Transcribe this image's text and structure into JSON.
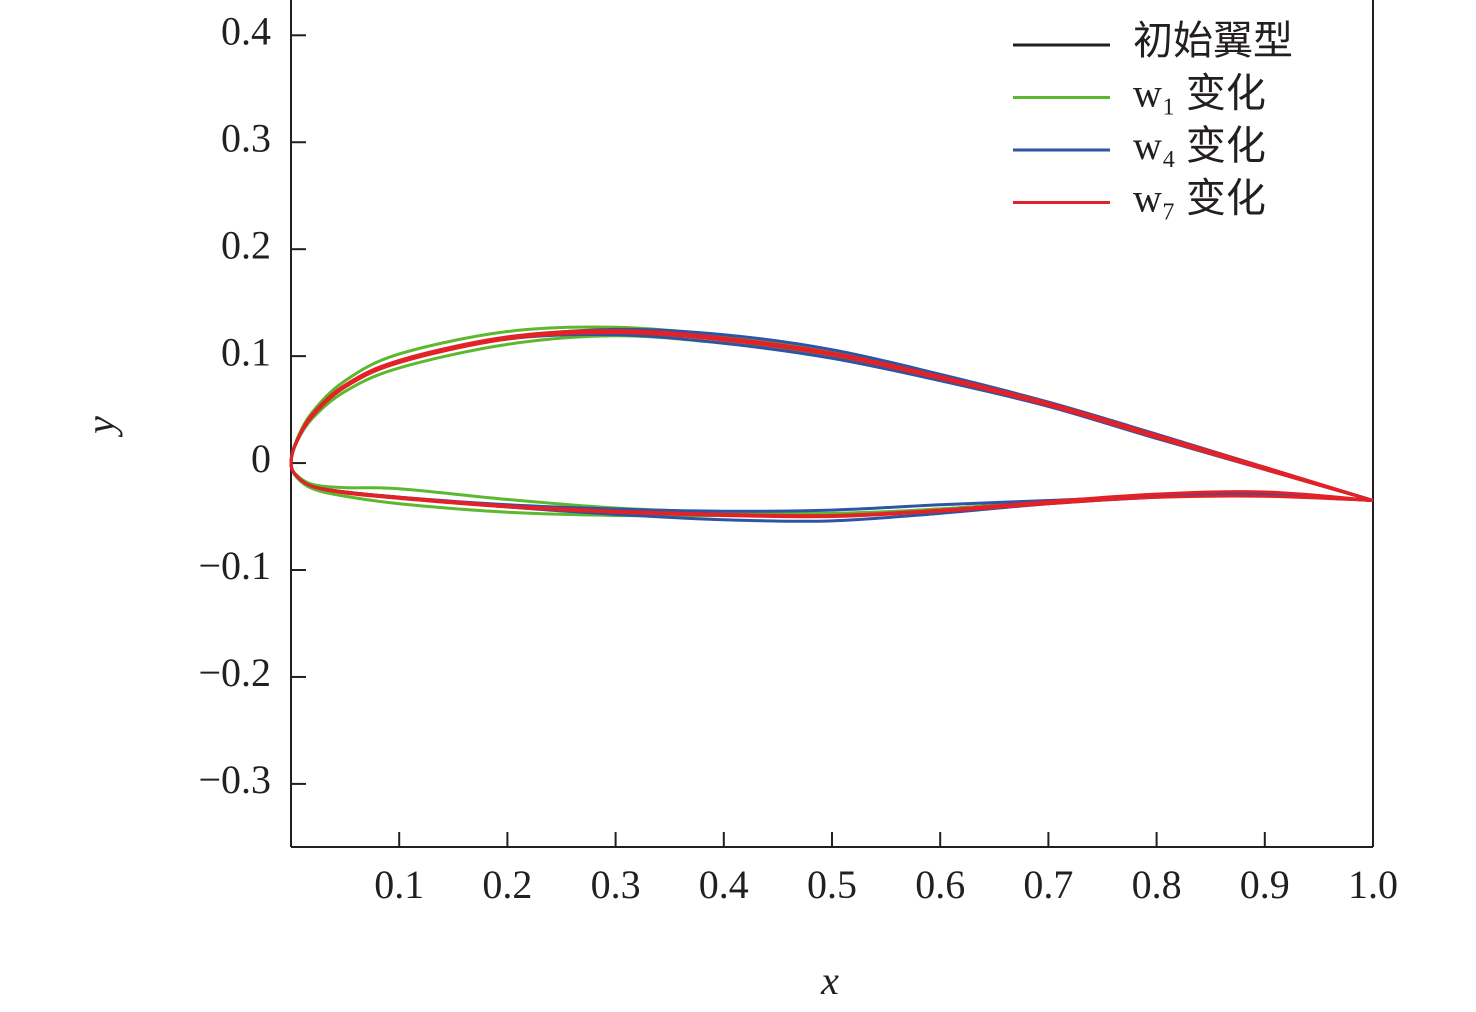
{
  "chart_data": {
    "type": "line",
    "xlabel": "x",
    "ylabel": "y",
    "xlim": [
      0,
      1
    ],
    "ylim": [
      -0.359,
      0.433
    ],
    "xticks": [
      0.1,
      0.2,
      0.3,
      0.4,
      0.5,
      0.6,
      0.7,
      0.8,
      0.9,
      {
        "value": 1,
        "label": "1.0"
      }
    ],
    "yticks": [
      {
        "value": -0.3,
        "label": "−0.3"
      },
      {
        "value": -0.2,
        "label": "−0.2"
      },
      {
        "value": -0.1,
        "label": "−0.1"
      },
      0,
      0.1,
      0.2,
      0.3,
      0.4
    ],
    "legend": "upper right",
    "series": [
      {
        "name": "初始翼型",
        "color": "#231f20",
        "curves": [
          {
            "x": [
              1,
              0.9,
              0.8,
              0.7,
              0.6,
              0.5,
              0.4,
              0.3,
              0.2,
              0.1,
              0.05,
              0.02,
              0.005,
              0,
              0.005,
              0.02,
              0.05,
              0.1,
              0.2,
              0.3,
              0.4,
              0.5,
              0.6,
              0.7,
              0.8,
              0.9,
              1
            ],
            "y": [
              -0.035,
              -0.005,
              0.025,
              0.055,
              0.08,
              0.102,
              0.116,
              0.123,
              0.117,
              0.095,
              0.072,
              0.045,
              0.02,
              0,
              -0.012,
              -0.022,
              -0.027,
              -0.032,
              -0.04,
              -0.045,
              -0.048,
              -0.048,
              -0.043,
              -0.036,
              -0.031,
              -0.029,
              -0.035
            ]
          }
        ]
      },
      {
        "name": "w₁ 变化",
        "color": "#5cb82e",
        "curves": [
          {
            "x": [
              1,
              0.9,
              0.8,
              0.7,
              0.6,
              0.5,
              0.4,
              0.3,
              0.2,
              0.1,
              0.05,
              0.02,
              0.005,
              0,
              0.005,
              0.02,
              0.05,
              0.1,
              0.2,
              0.3,
              0.4,
              0.5,
              0.6,
              0.7,
              0.8,
              0.9,
              1
            ],
            "y": [
              -0.035,
              -0.005,
              0.025,
              0.055,
              0.081,
              0.104,
              0.119,
              0.127,
              0.123,
              0.102,
              0.077,
              0.048,
              0.021,
              0,
              -0.011,
              -0.02,
              -0.023,
              -0.024,
              -0.034,
              -0.042,
              -0.046,
              -0.047,
              -0.043,
              -0.036,
              -0.031,
              -0.029,
              -0.035
            ]
          },
          {
            "x": [
              1,
              0.9,
              0.8,
              0.7,
              0.6,
              0.5,
              0.4,
              0.3,
              0.2,
              0.1,
              0.05,
              0.02,
              0.005,
              0,
              0.005,
              0.02,
              0.05,
              0.1,
              0.2,
              0.3,
              0.4,
              0.5,
              0.6,
              0.7,
              0.8,
              0.9,
              1
            ],
            "y": [
              -0.035,
              -0.005,
              0.025,
              0.055,
              0.079,
              0.1,
              0.112,
              0.119,
              0.111,
              0.089,
              0.067,
              0.042,
              0.019,
              0,
              -0.013,
              -0.024,
              -0.031,
              -0.038,
              -0.046,
              -0.049,
              -0.049,
              -0.048,
              -0.043,
              -0.037,
              -0.031,
              -0.029,
              -0.035
            ]
          }
        ]
      },
      {
        "name": "w₄ 变化",
        "color": "#2e55a5",
        "curves": [
          {
            "x": [
              1,
              0.9,
              0.8,
              0.7,
              0.6,
              0.5,
              0.4,
              0.3,
              0.2,
              0.1,
              0.05,
              0.02,
              0.005,
              0,
              0.005,
              0.02,
              0.05,
              0.1,
              0.2,
              0.3,
              0.4,
              0.5,
              0.6,
              0.7,
              0.8,
              0.9,
              1
            ],
            "y": [
              -0.035,
              -0.004,
              0.027,
              0.057,
              0.083,
              0.106,
              0.12,
              0.125,
              0.117,
              0.095,
              0.072,
              0.045,
              0.02,
              0,
              -0.012,
              -0.022,
              -0.027,
              -0.032,
              -0.041,
              -0.048,
              -0.053,
              -0.054,
              -0.047,
              -0.038,
              -0.032,
              -0.03,
              -0.035
            ]
          },
          {
            "x": [
              1,
              0.9,
              0.8,
              0.7,
              0.6,
              0.5,
              0.4,
              0.3,
              0.2,
              0.1,
              0.05,
              0.02,
              0.005,
              0,
              0.005,
              0.02,
              0.05,
              0.1,
              0.2,
              0.3,
              0.4,
              0.5,
              0.6,
              0.7,
              0.8,
              0.9,
              1
            ],
            "y": [
              -0.035,
              -0.006,
              0.023,
              0.053,
              0.077,
              0.098,
              0.112,
              0.12,
              0.116,
              0.095,
              0.072,
              0.045,
              0.02,
              0,
              -0.012,
              -0.022,
              -0.027,
              -0.032,
              -0.039,
              -0.043,
              -0.045,
              -0.044,
              -0.039,
              -0.035,
              -0.031,
              -0.029,
              -0.035
            ]
          }
        ]
      },
      {
        "name": "w₇ 变化",
        "color": "#e32228",
        "curves": [
          {
            "x": [
              1,
              0.9,
              0.8,
              0.7,
              0.6,
              0.5,
              0.4,
              0.3,
              0.2,
              0.1,
              0.05,
              0.02,
              0.005,
              0,
              0.005,
              0.02,
              0.05,
              0.1,
              0.2,
              0.3,
              0.4,
              0.5,
              0.6,
              0.7,
              0.8,
              0.9,
              1
            ],
            "y": [
              -0.035,
              -0.004,
              0.026,
              0.056,
              0.081,
              0.103,
              0.117,
              0.124,
              0.118,
              0.096,
              0.073,
              0.046,
              0.02,
              0,
              -0.012,
              -0.022,
              -0.027,
              -0.032,
              -0.04,
              -0.045,
              -0.048,
              -0.049,
              -0.044,
              -0.036,
              -0.029,
              -0.027,
              -0.035
            ]
          },
          {
            "x": [
              1,
              0.9,
              0.8,
              0.7,
              0.6,
              0.5,
              0.4,
              0.3,
              0.2,
              0.1,
              0.05,
              0.02,
              0.005,
              0,
              0.005,
              0.02,
              0.05,
              0.1,
              0.2,
              0.3,
              0.4,
              0.5,
              0.6,
              0.7,
              0.8,
              0.9,
              1
            ],
            "y": [
              -0.035,
              -0.006,
              0.024,
              0.054,
              0.079,
              0.101,
              0.115,
              0.122,
              0.116,
              0.094,
              0.071,
              0.044,
              0.019,
              0,
              -0.012,
              -0.022,
              -0.028,
              -0.033,
              -0.041,
              -0.046,
              -0.049,
              -0.05,
              -0.045,
              -0.038,
              -0.032,
              -0.031,
              -0.035
            ]
          }
        ]
      }
    ]
  }
}
